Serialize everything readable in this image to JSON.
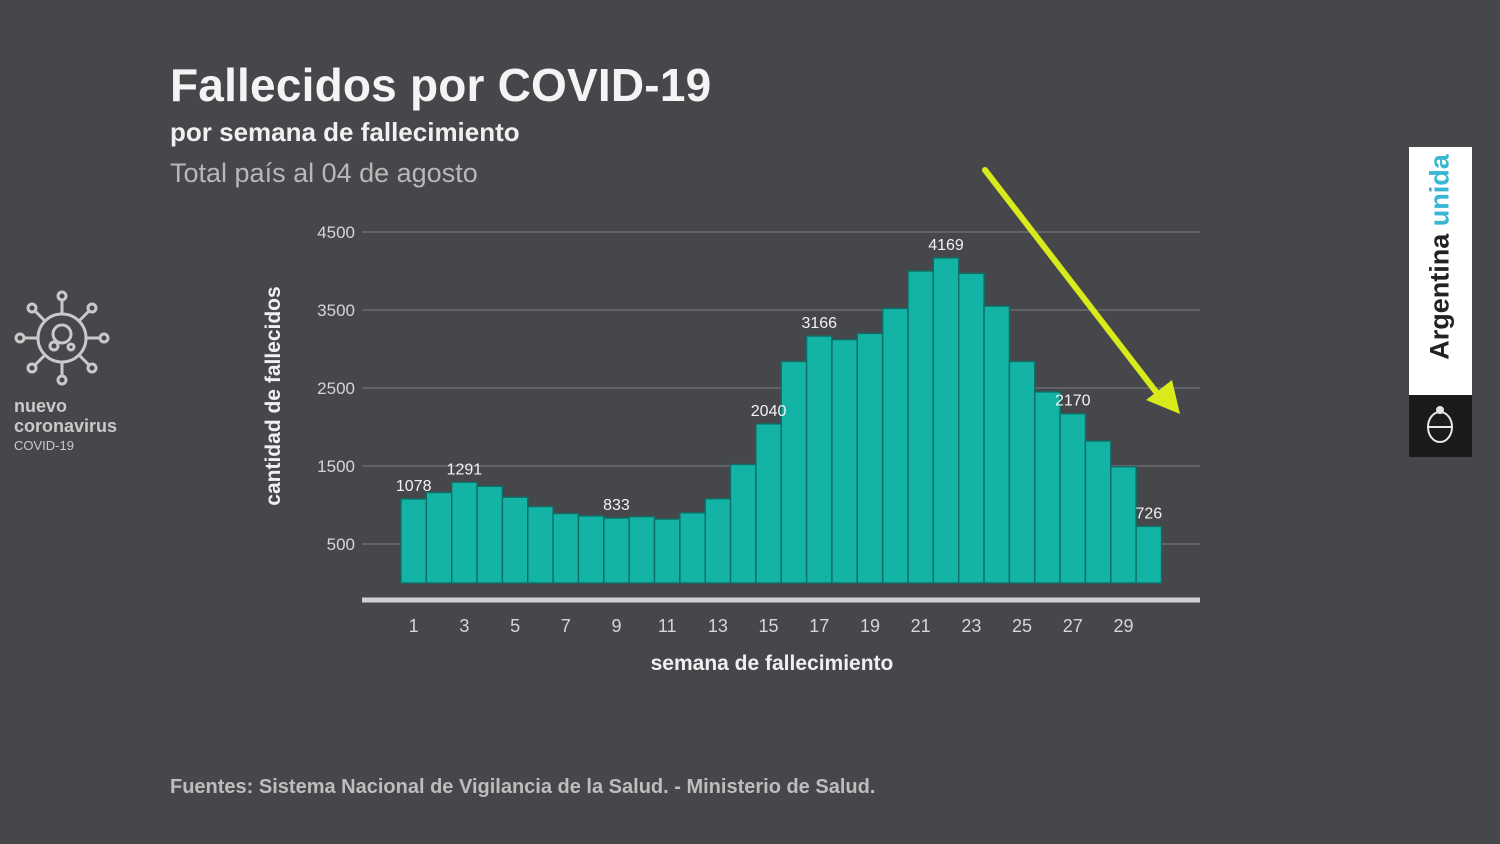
{
  "header": {
    "title": "Fallecidos por COVID-19",
    "subtitle": "por semana de fallecimiento",
    "date_line": "Total país al 04 de agosto"
  },
  "footer": {
    "source": "Fuentes: Sistema Nacional de Vigilancia de la Salud. - Ministerio de Salud."
  },
  "branding": {
    "line1": "nuevo",
    "line2": "coronavirus",
    "line3": "COVID-19",
    "gov_word1": "Argentina",
    "gov_word2": "unida",
    "icon": "virus-icon"
  },
  "colors": {
    "background": "#46474b",
    "bar": "#13b3a5",
    "bar_border": "#0f6e66",
    "arrow": "#d8ea1a",
    "gov_accent": "#38b6d4"
  },
  "chart_data": {
    "type": "bar",
    "xlabel": "semana de fallecimiento",
    "ylabel": "cantidad de fallecidos",
    "ylim": [
      0,
      4500
    ],
    "y_ticks": [
      500,
      1500,
      2500,
      3500,
      4500
    ],
    "x_tick_labels": [
      "1",
      "3",
      "5",
      "7",
      "9",
      "11",
      "13",
      "15",
      "17",
      "19",
      "21",
      "23",
      "25",
      "27",
      "29"
    ],
    "grid": true,
    "categories": [
      1,
      2,
      3,
      4,
      5,
      6,
      7,
      8,
      9,
      10,
      11,
      12,
      13,
      14,
      15,
      16,
      17,
      18,
      19,
      20,
      21,
      22,
      23,
      24,
      25,
      26,
      27,
      28,
      29,
      30
    ],
    "values": [
      1078,
      1160,
      1291,
      1240,
      1100,
      980,
      890,
      860,
      833,
      850,
      820,
      900,
      1080,
      1520,
      2040,
      2840,
      3166,
      3120,
      3200,
      3520,
      4000,
      4169,
      3970,
      3550,
      2840,
      2450,
      2170,
      1820,
      1490,
      726
    ],
    "data_labels": [
      {
        "week": 1,
        "text": "1078"
      },
      {
        "week": 3,
        "text": "1291"
      },
      {
        "week": 9,
        "text": "833"
      },
      {
        "week": 15,
        "text": "2040"
      },
      {
        "week": 17,
        "text": "3166"
      },
      {
        "week": 22,
        "text": "4169"
      },
      {
        "week": 27,
        "text": "2170"
      },
      {
        "week": 30,
        "text": "726"
      }
    ],
    "annotation": "downward-trend-arrow"
  }
}
